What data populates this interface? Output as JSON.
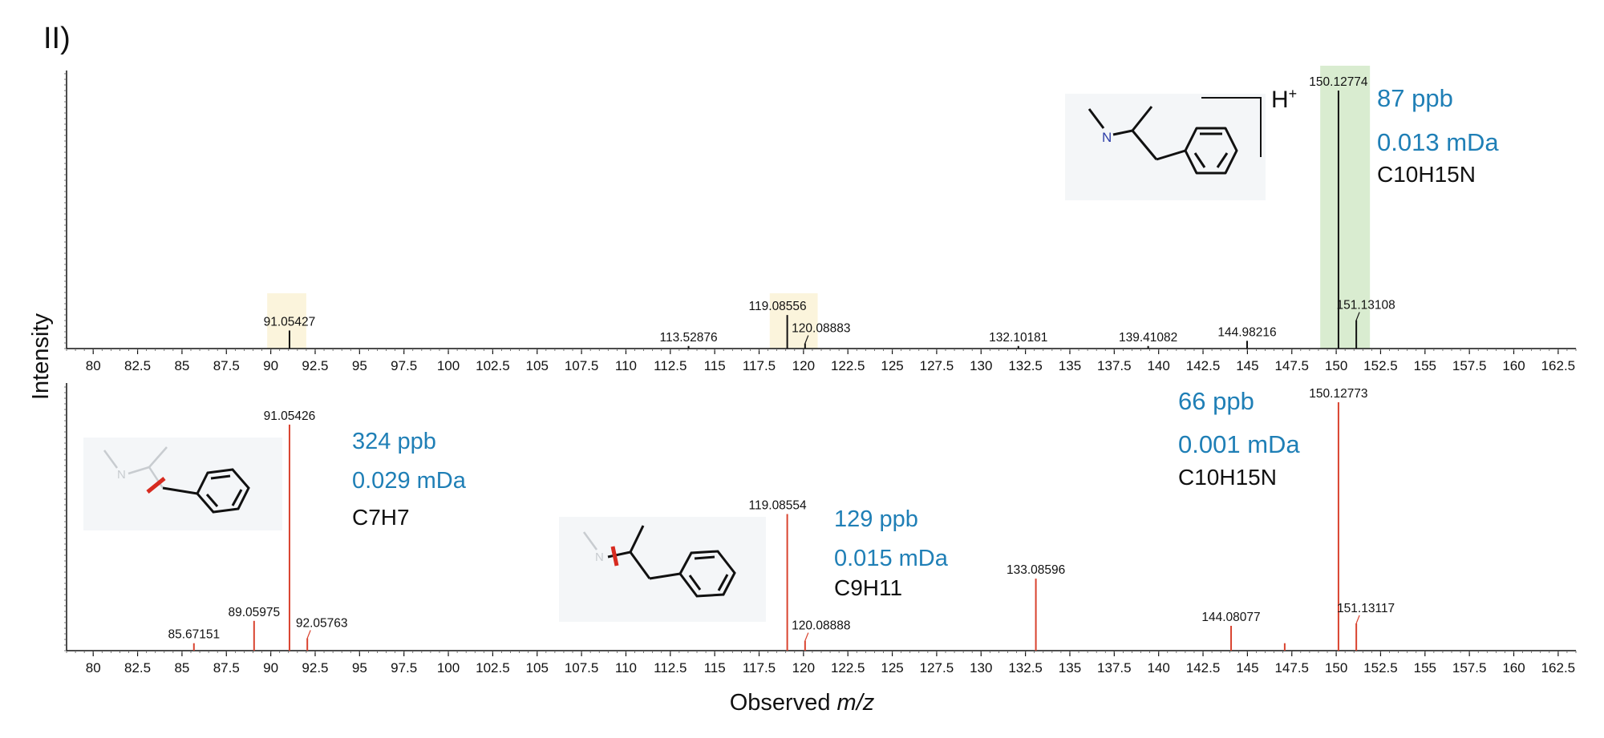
{
  "figure": {
    "panel_label": "II)",
    "ylabel": "Intensity",
    "xlabel_prefix": "Observed ",
    "xlabel_italic": "m/z",
    "accent_blue": "#1f7fb6",
    "ms2_color": "#d9432f",
    "highlight_yellow": "#fbf4dc",
    "highlight_green": "#d9ecd0",
    "structure_bg": "#f4f6f8",
    "molecule_label_H": "H",
    "molecule_label_charge": "+"
  },
  "chart_data": [
    {
      "type": "bar",
      "name": "top",
      "xlim": [
        78.5,
        163.5
      ],
      "ylim": [
        0,
        1
      ],
      "x_ticks": [
        80,
        82.5,
        85,
        87.5,
        90,
        92.5,
        95,
        97.5,
        100,
        102.5,
        105,
        107.5,
        110,
        112.5,
        115,
        117.5,
        120,
        122.5,
        125,
        127.5,
        130,
        132.5,
        135,
        137.5,
        140,
        142.5,
        145,
        147.5,
        150,
        152.5,
        155,
        157.5,
        160,
        162.5
      ],
      "x_tick_labels": [
        "80",
        "82.5",
        "85",
        "87.5",
        "90",
        "92.5",
        "95",
        "97.5",
        "100",
        "102.5",
        "105",
        "107.5",
        "110",
        "112.5",
        "115",
        "117.5",
        "120",
        "122.5",
        "125",
        "127.5",
        "130",
        "132.5",
        "135",
        "137.5",
        "140",
        "142.5",
        "145",
        "147.5",
        "150",
        "152.5",
        "155",
        "157.5",
        "160",
        "162.5"
      ],
      "peaks": [
        {
          "x": 91.05427,
          "y": 0.07,
          "label": "91.05427"
        },
        {
          "x": 113.52876,
          "y": 0.01,
          "label": "113.52876"
        },
        {
          "x": 119.08556,
          "y": 0.13,
          "label": "119.08556"
        },
        {
          "x": 120.08883,
          "y": 0.02,
          "label": "120.08883"
        },
        {
          "x": 132.10181,
          "y": 0.01,
          "label": "132.10181"
        },
        {
          "x": 139.41082,
          "y": 0.01,
          "label": "139.41082"
        },
        {
          "x": 144.98216,
          "y": 0.03,
          "label": "144.98216"
        },
        {
          "x": 150.12774,
          "y": 1.0,
          "label": "150.12774"
        },
        {
          "x": 151.13108,
          "y": 0.11,
          "label": "151.13108"
        }
      ],
      "highlights": [
        {
          "from": 89.8,
          "to": 92.0,
          "color": "#fbf4dc"
        },
        {
          "from": 118.1,
          "to": 120.8,
          "color": "#fbf4dc"
        },
        {
          "from": 149.1,
          "to": 151.9,
          "color": "#d9ecd0"
        }
      ],
      "annotations": {
        "ppb": "87 ppb",
        "mda": "0.013 mDa",
        "formula": "C10H15N"
      }
    },
    {
      "type": "bar",
      "name": "bottom",
      "xlim": [
        78.5,
        163.5
      ],
      "ylim": [
        0,
        1
      ],
      "x_ticks": [
        80,
        82.5,
        85,
        87.5,
        90,
        92.5,
        95,
        97.5,
        100,
        102.5,
        105,
        107.5,
        110,
        112.5,
        115,
        117.5,
        120,
        122.5,
        125,
        127.5,
        130,
        132.5,
        135,
        137.5,
        140,
        142.5,
        145,
        147.5,
        150,
        152.5,
        155,
        157.5,
        160,
        162.5
      ],
      "x_tick_labels": [
        "80",
        "82.5",
        "85",
        "87.5",
        "90",
        "92.5",
        "95",
        "97.5",
        "100",
        "102.5",
        "105",
        "107.5",
        "110",
        "112.5",
        "115",
        "117.5",
        "120",
        "122.5",
        "125",
        "127.5",
        "130",
        "132.5",
        "135",
        "137.5",
        "140",
        "142.5",
        "145",
        "147.5",
        "150",
        "152.5",
        "155",
        "157.5",
        "160",
        "162.5"
      ],
      "peaks": [
        {
          "x": 85.67151,
          "y": 0.03,
          "label": "85.67151"
        },
        {
          "x": 89.05975,
          "y": 0.12,
          "label": "89.05975"
        },
        {
          "x": 91.05426,
          "y": 0.91,
          "label": "91.05426"
        },
        {
          "x": 92.05763,
          "y": 0.05,
          "label": "92.05763"
        },
        {
          "x": 119.08554,
          "y": 0.55,
          "label": "119.08554"
        },
        {
          "x": 120.08888,
          "y": 0.04,
          "label": "120.08888"
        },
        {
          "x": 133.08596,
          "y": 0.29,
          "label": "133.08596"
        },
        {
          "x": 144.08077,
          "y": 0.1,
          "label": "144.08077"
        },
        {
          "x": 147.1,
          "y": 0.03,
          "label": ""
        },
        {
          "x": 150.12773,
          "y": 1.0,
          "label": "150.12773"
        },
        {
          "x": 151.13117,
          "y": 0.11,
          "label": "151.13117"
        }
      ],
      "annotations": [
        {
          "ppb": "324 ppb",
          "mda": "0.029 mDa",
          "formula": "C7H7"
        },
        {
          "ppb": "129 ppb",
          "mda": "0.015 mDa",
          "formula": "C9H11"
        },
        {
          "ppb": "66 ppb",
          "mda": "0.001 mDa",
          "formula": "C10H15N"
        }
      ]
    }
  ]
}
